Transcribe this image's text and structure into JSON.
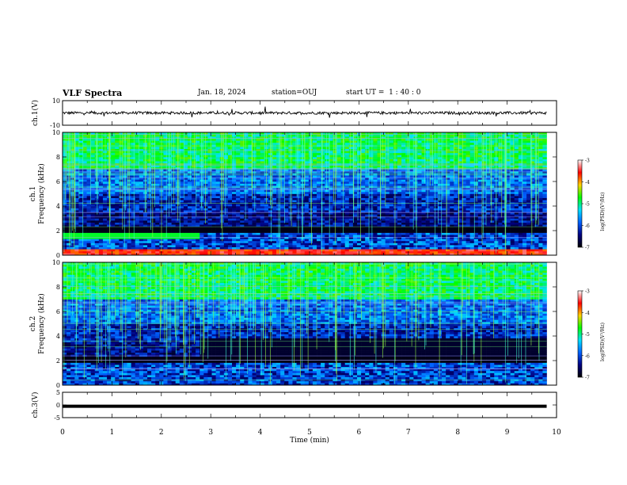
{
  "header": {
    "title": "VLF Spectra",
    "date": "Jan. 18, 2024",
    "station": "station=OUJ",
    "start_ut": "start UT =  1 : 40 : 0"
  },
  "colorbar": {
    "label": "log(PSD)(V²/Hz)",
    "ticks": [
      "-3",
      "-4",
      "-5",
      "-6",
      "-7"
    ],
    "stops": [
      "#ffffff",
      "#ff0000",
      "#ffd200",
      "#00ff00",
      "#00e0ff",
      "#0060ff",
      "#000080",
      "#000000"
    ]
  },
  "chart_data": [
    {
      "type": "line",
      "title": "ch.1(V)",
      "ylabel": "ch.1(V)",
      "xlim": [
        0,
        10
      ],
      "ylim": [
        -10,
        10
      ],
      "yticks": [
        "10",
        "-10"
      ],
      "series": [
        {
          "x": [
            0,
            9.8
          ],
          "y": [
            0,
            0
          ]
        }
      ]
    },
    {
      "type": "heatmap",
      "title": "ch.1",
      "ylabel": "ch.1",
      "ylabel2": "Frequency (kHz)",
      "xlim": [
        0,
        10
      ],
      "ylim": [
        0,
        10
      ],
      "yticks": [
        "0",
        "2",
        "4",
        "6",
        "8",
        "10"
      ],
      "zlim": [
        -7,
        -3
      ]
    },
    {
      "type": "heatmap",
      "title": "ch.2",
      "ylabel": "ch.2",
      "ylabel2": "Frequency (kHz)",
      "xlim": [
        0,
        10
      ],
      "ylim": [
        0,
        10
      ],
      "yticks": [
        "0",
        "2",
        "4",
        "6",
        "8",
        "10"
      ],
      "zlim": [
        -7,
        -3
      ]
    },
    {
      "type": "line",
      "title": "ch.3(V)",
      "ylabel": "ch.3(V)",
      "xlim": [
        0,
        10
      ],
      "ylim": [
        -5,
        5
      ],
      "yticks": [
        "5",
        "0",
        "-5"
      ],
      "xlabel": "Time (min)",
      "xticks": [
        "0",
        "1",
        "2",
        "3",
        "4",
        "5",
        "6",
        "7",
        "8",
        "9",
        "10"
      ],
      "series": [
        {
          "x": [
            0,
            9.8
          ],
          "y": [
            -0.5,
            -0.5
          ]
        }
      ]
    }
  ]
}
